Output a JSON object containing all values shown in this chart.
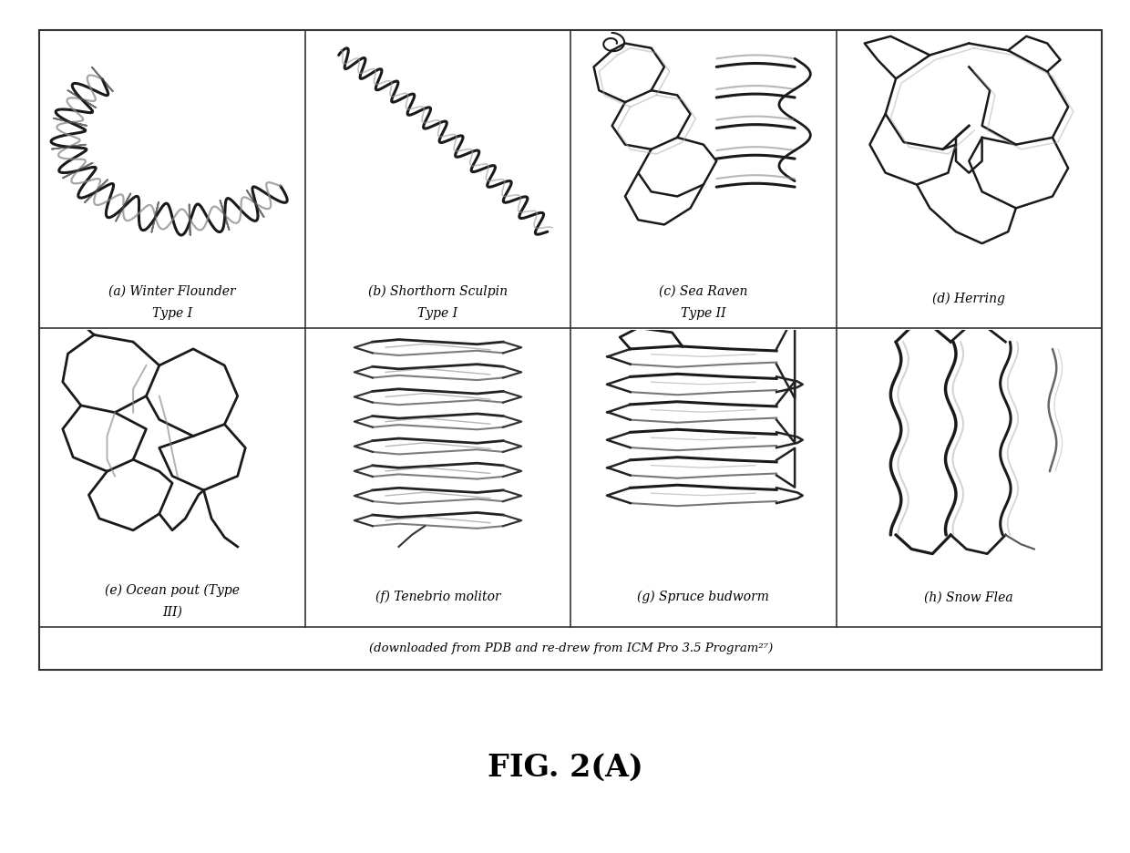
{
  "fig_label": "FIG. 2(A)",
  "caption": "(downloaded from PDB and re-drew from ICM Pro 3.5 Program²⁷)",
  "background_color": "#ffffff",
  "panel_labels_row1": [
    "(a) Winter Flounder",
    "(b) Shorthorn Sculpin\nType I",
    "(c) Sea Raven\nType II",
    "(d) Herring"
  ],
  "panel_labels_row2": [
    "(e) Ocean pout (Type\nIII)",
    "(f) Tenebrio molitor",
    "(g) Spruce budworm",
    "(h) Snow Flea"
  ],
  "label_row1_extra": "Type I",
  "label_fontsize": 10,
  "fig_label_fontsize": 24,
  "caption_fontsize": 9.5
}
